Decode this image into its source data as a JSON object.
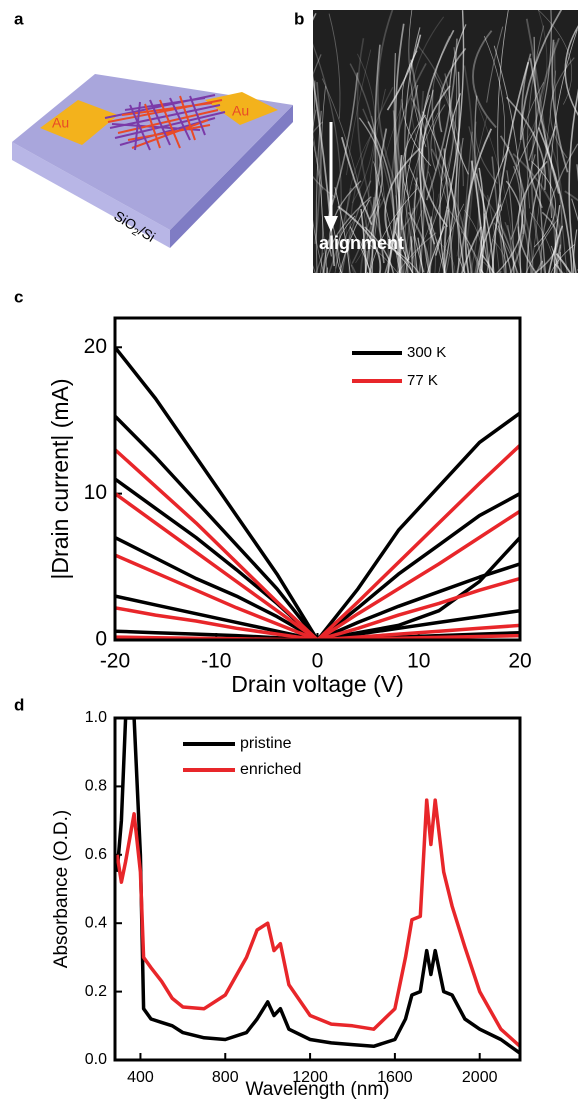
{
  "panel_a": {
    "label": "a",
    "electrode_left": "Au",
    "electrode_right": "Au",
    "substrate": [
      "SiO",
      "2",
      "/Si"
    ]
  },
  "panel_b": {
    "label": "b",
    "annotation": "alignment"
  },
  "chart_data": [
    {
      "type": "line",
      "label": "c",
      "xlabel": "Drain voltage (V)",
      "ylabel": "|Drain current| (mA)",
      "x": [
        -20,
        -16,
        -12,
        -8,
        -4,
        0,
        4,
        8,
        12,
        16,
        20
      ],
      "xlim": [
        -20,
        20
      ],
      "xticks": [
        -20,
        -10,
        0,
        10,
        20
      ],
      "ylim": [
        0,
        22
      ],
      "yticks": [
        0,
        10,
        20
      ],
      "legend": "upper right",
      "series": [
        {
          "name": "300 K",
          "color": "#000000",
          "curves": [
            [
              20,
              16.5,
              12.5,
              8.5,
              4.5,
              0,
              3.5,
              7.5,
              10.5,
              13.5,
              15.5
            ],
            [
              15.3,
              12.5,
              9.5,
              6.5,
              3.5,
              0,
              2.2,
              4.5,
              6.5,
              8.5,
              10
            ],
            [
              11,
              9,
              7,
              4.8,
              2.5,
              0,
              0.5,
              1,
              2,
              4,
              7
            ],
            [
              7,
              5.6,
              4.2,
              3,
              1.6,
              0,
              1.2,
              2.3,
              3.3,
              4.3,
              5.2
            ],
            [
              3,
              2.4,
              1.8,
              1.2,
              0.6,
              0,
              0.4,
              0.8,
              1.2,
              1.6,
              2
            ],
            [
              0.6,
              0.5,
              0.4,
              0.3,
              0.15,
              0,
              0.1,
              0.2,
              0.3,
              0.4,
              0.5
            ]
          ]
        },
        {
          "name": "77 K",
          "color": "#e8262a",
          "curves": [
            [
              13,
              10.5,
              8,
              5.3,
              2.6,
              0,
              2.6,
              5.3,
              8,
              10.7,
              13.3
            ],
            [
              10,
              8,
              6,
              4,
              2,
              0,
              1.8,
              3.5,
              5.2,
              7,
              8.8
            ],
            [
              5.8,
              4.6,
              3.4,
              2.2,
              1.1,
              0,
              0.8,
              1.7,
              2.5,
              3.4,
              4.2
            ],
            [
              2.2,
              1.7,
              1.3,
              0.8,
              0.4,
              0,
              0.2,
              0.4,
              0.6,
              0.8,
              1
            ],
            [
              0.2,
              0.16,
              0.12,
              0.08,
              0.04,
              0,
              0.06,
              0.12,
              0.18,
              0.24,
              0.3
            ]
          ]
        }
      ]
    },
    {
      "type": "line",
      "label": "d",
      "xlabel": "Wavelength (nm)",
      "ylabel": "Absorbance (O.D.)",
      "x": [
        290,
        310,
        330,
        370,
        400,
        415,
        450,
        500,
        550,
        600,
        700,
        800,
        900,
        950,
        1000,
        1030,
        1060,
        1100,
        1200,
        1300,
        1400,
        1500,
        1600,
        1650,
        1680,
        1720,
        1750,
        1770,
        1790,
        1830,
        1870,
        1930,
        2000,
        2100,
        2190
      ],
      "xlim": [
        280,
        2190
      ],
      "xticks": [
        400,
        800,
        1200,
        1600,
        2000
      ],
      "ylim": [
        0,
        1
      ],
      "yticks": [
        {
          "value": 0,
          "label": "0.0"
        },
        0.2,
        0.4,
        0.6,
        0.8,
        {
          "value": 1,
          "label": "1.0"
        }
      ],
      "legend": "upper left",
      "series": [
        {
          "name": "pristine",
          "color": "#000000",
          "values": [
            0.55,
            0.7,
            1.0,
            1.0,
            0.6,
            0.15,
            0.12,
            0.11,
            0.1,
            0.08,
            0.065,
            0.06,
            0.08,
            0.12,
            0.17,
            0.13,
            0.15,
            0.09,
            0.06,
            0.05,
            0.045,
            0.04,
            0.06,
            0.12,
            0.19,
            0.2,
            0.32,
            0.25,
            0.32,
            0.2,
            0.19,
            0.12,
            0.09,
            0.06,
            0.02
          ]
        },
        {
          "name": "enriched",
          "color": "#e8262a",
          "values": [
            0.6,
            0.52,
            0.58,
            0.72,
            0.55,
            0.3,
            0.27,
            0.23,
            0.18,
            0.155,
            0.15,
            0.19,
            0.3,
            0.38,
            0.4,
            0.32,
            0.34,
            0.22,
            0.13,
            0.105,
            0.1,
            0.09,
            0.15,
            0.3,
            0.41,
            0.42,
            0.76,
            0.63,
            0.76,
            0.55,
            0.45,
            0.33,
            0.2,
            0.09,
            0.04
          ]
        }
      ]
    }
  ]
}
